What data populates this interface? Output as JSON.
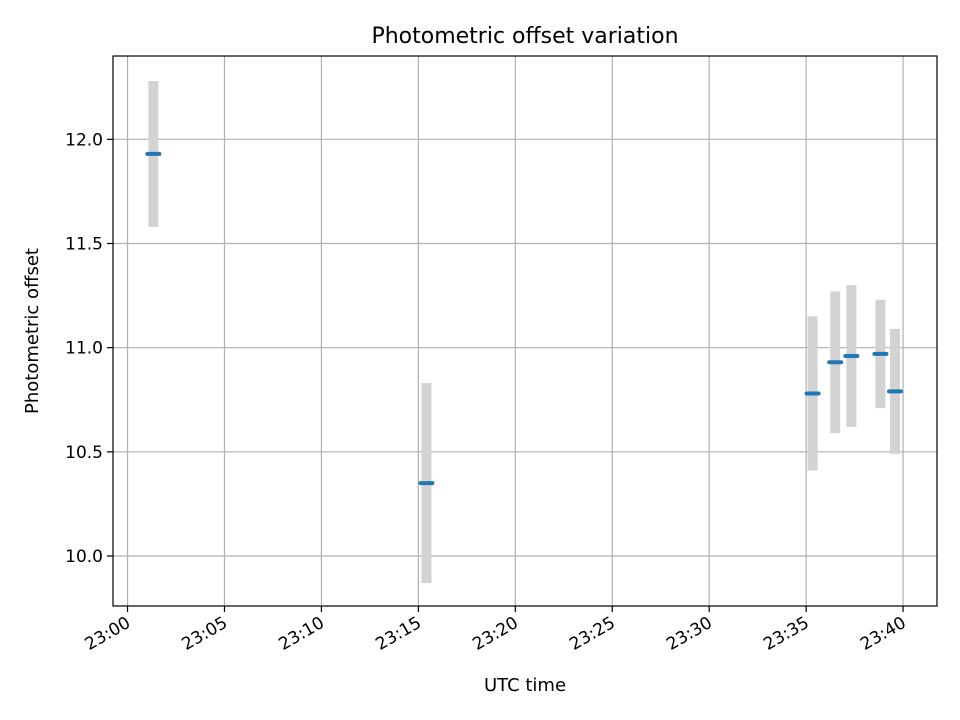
{
  "chart_data": {
    "type": "scatter",
    "title": "Photometric offset variation",
    "xlabel": "UTC time",
    "ylabel": "Photometric offset",
    "xlim": [
      "22:59:15",
      "23:41:45"
    ],
    "ylim": [
      9.76,
      12.4
    ],
    "grid": true,
    "x_ticks": [
      "23:00",
      "23:05",
      "23:10",
      "23:15",
      "23:20",
      "23:25",
      "23:30",
      "23:35",
      "23:40"
    ],
    "y_ticks": [
      "10.0",
      "10.5",
      "11.0",
      "11.5",
      "12.0"
    ],
    "series": [
      {
        "values": [
          {
            "x": "23:01:20",
            "y": 11.93,
            "error": 0.35
          },
          {
            "x": "23:15:25",
            "y": 10.35,
            "error": 0.48
          },
          {
            "x": "23:35:20",
            "y": 10.78,
            "error": 0.37
          },
          {
            "x": "23:36:30",
            "y": 10.93,
            "error": 0.34
          },
          {
            "x": "23:37:20",
            "y": 10.96,
            "error": 0.34
          },
          {
            "x": "23:38:50",
            "y": 10.97,
            "error": 0.26
          },
          {
            "x": "23:39:35",
            "y": 10.79,
            "error": 0.3
          }
        ]
      }
    ],
    "colors": {
      "marker": "#1f77b4",
      "errorbar": "#d3d3d3",
      "grid": "#b0b0b0"
    }
  }
}
